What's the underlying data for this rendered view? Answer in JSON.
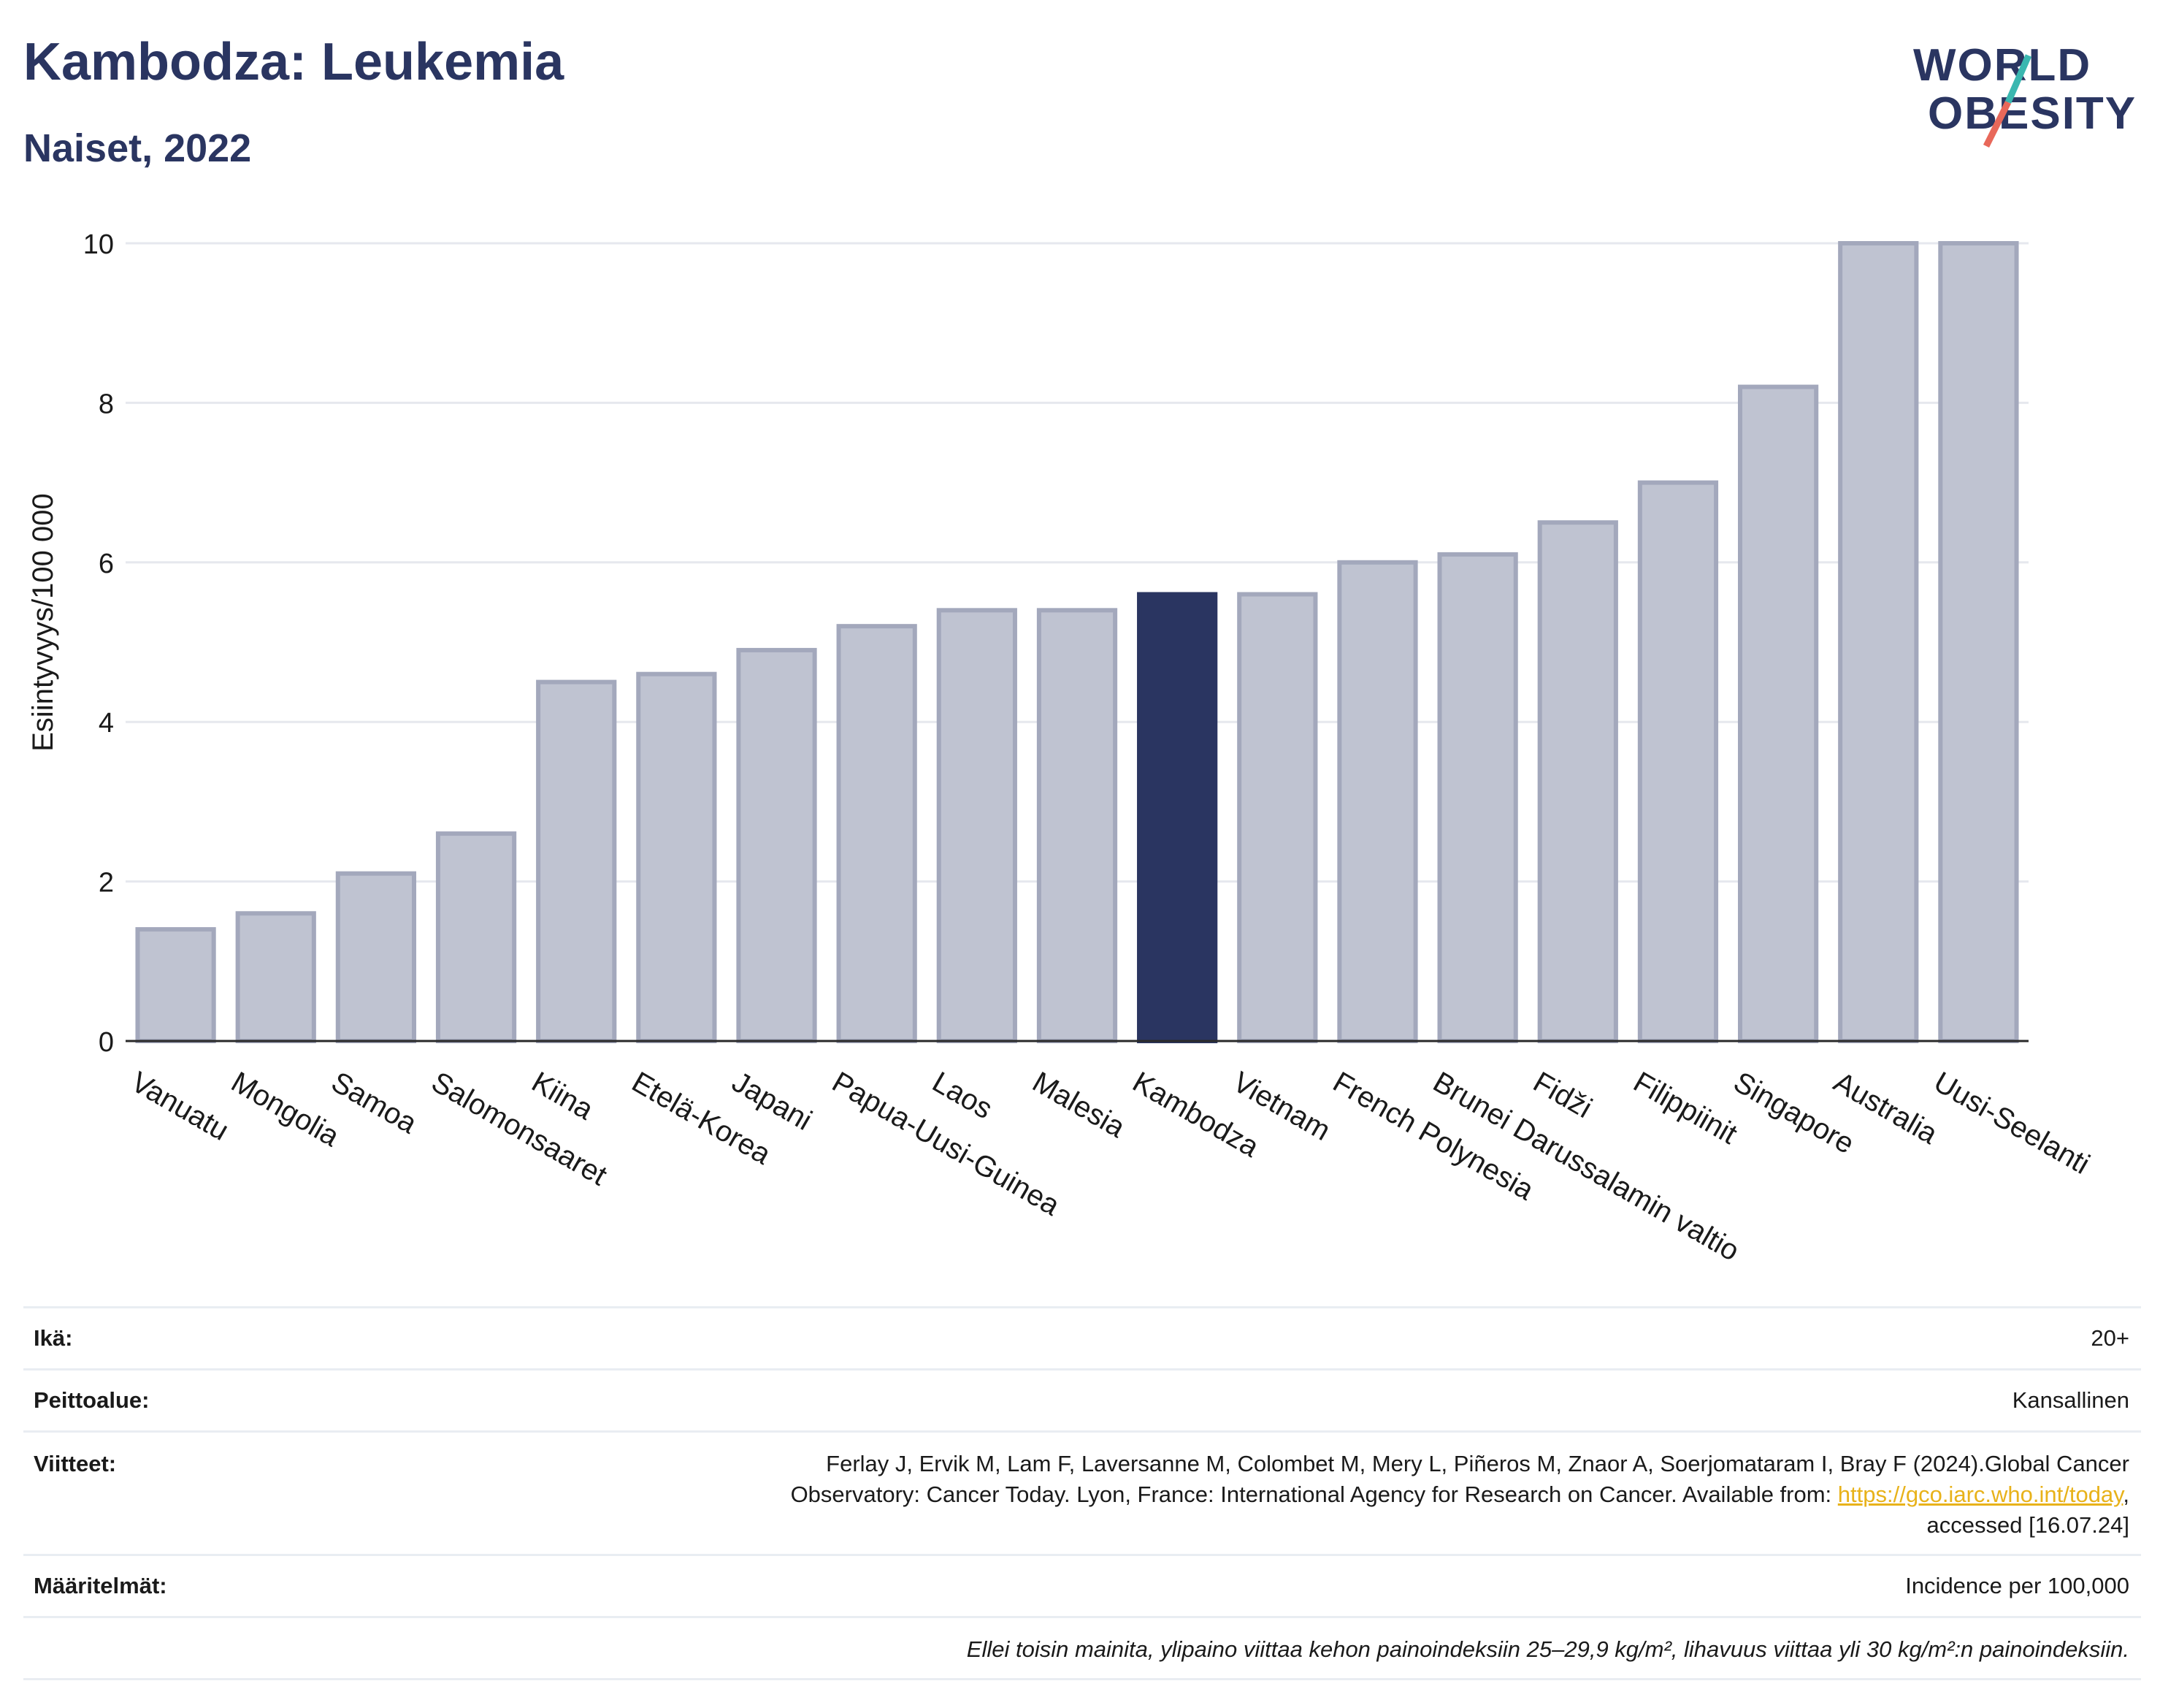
{
  "header": {
    "title": "Kambodza: Leukemia",
    "subtitle": "Naiset, 2022"
  },
  "logo": {
    "line1": "WORLD",
    "line2": "OBESITY"
  },
  "chart_data": {
    "type": "bar",
    "title": "Kambodza: Leukemia",
    "subtitle": "Naiset, 2022",
    "xlabel": "",
    "ylabel": "Esiintyvyys/100 000",
    "ylim": [
      0,
      10
    ],
    "yticks": [
      0,
      2,
      4,
      6,
      8,
      10
    ],
    "grid": true,
    "highlight": "Kambodza",
    "categories": [
      "Vanuatu",
      "Mongolia",
      "Samoa",
      "Salomonsaaret",
      "Kiina",
      "Etelä-Korea",
      "Japani",
      "Papua-Uusi-Guinea",
      "Laos",
      "Malesia",
      "Kambodza",
      "Vietnam",
      "French Polynesia",
      "Brunei Darussalamin valtio",
      "Fidži",
      "Filippiinit",
      "Singapore",
      "Australia",
      "Uusi-Seelanti"
    ],
    "values": [
      1.4,
      1.6,
      2.1,
      2.6,
      4.5,
      4.6,
      4.9,
      5.2,
      5.4,
      5.4,
      5.6,
      5.6,
      6.0,
      6.1,
      6.5,
      7.0,
      8.2,
      10.0,
      10.0
    ],
    "colors": {
      "bar": "#bfc3d1",
      "bar_edge": "#a3a8bc",
      "highlight": "#2a3561",
      "axis": "#2a2a2a",
      "grid": "#e6e8ee"
    }
  },
  "meta": {
    "age_label": "Ikä:",
    "age_value": "20+",
    "coverage_label": "Peittoalue:",
    "coverage_value": "Kansallinen",
    "refs_label": "Viitteet:",
    "refs_line1": "Ferlay J, Ervik M, Lam F, Laversanne M, Colombet M, Mery L, Piñeros M, Znaor A, Soerjomataram I, Bray F (2024).Global Cancer",
    "refs_line2_pre": "Observatory: Cancer Today. Lyon, France: International Agency for Research on Cancer. Available from: ",
    "refs_link": "https://gco.iarc.who.int/today",
    "refs_line2_post": ",",
    "refs_line3": "accessed [16.07.24]",
    "defs_label": "Määritelmät:",
    "defs_value": "Incidence per 100,000",
    "note": "Ellei toisin mainita, ylipaino viittaa kehon painoindeksiin 25–29,9 kg/m², lihavuus viittaa yli 30 kg/m²:n painoindeksiin."
  }
}
